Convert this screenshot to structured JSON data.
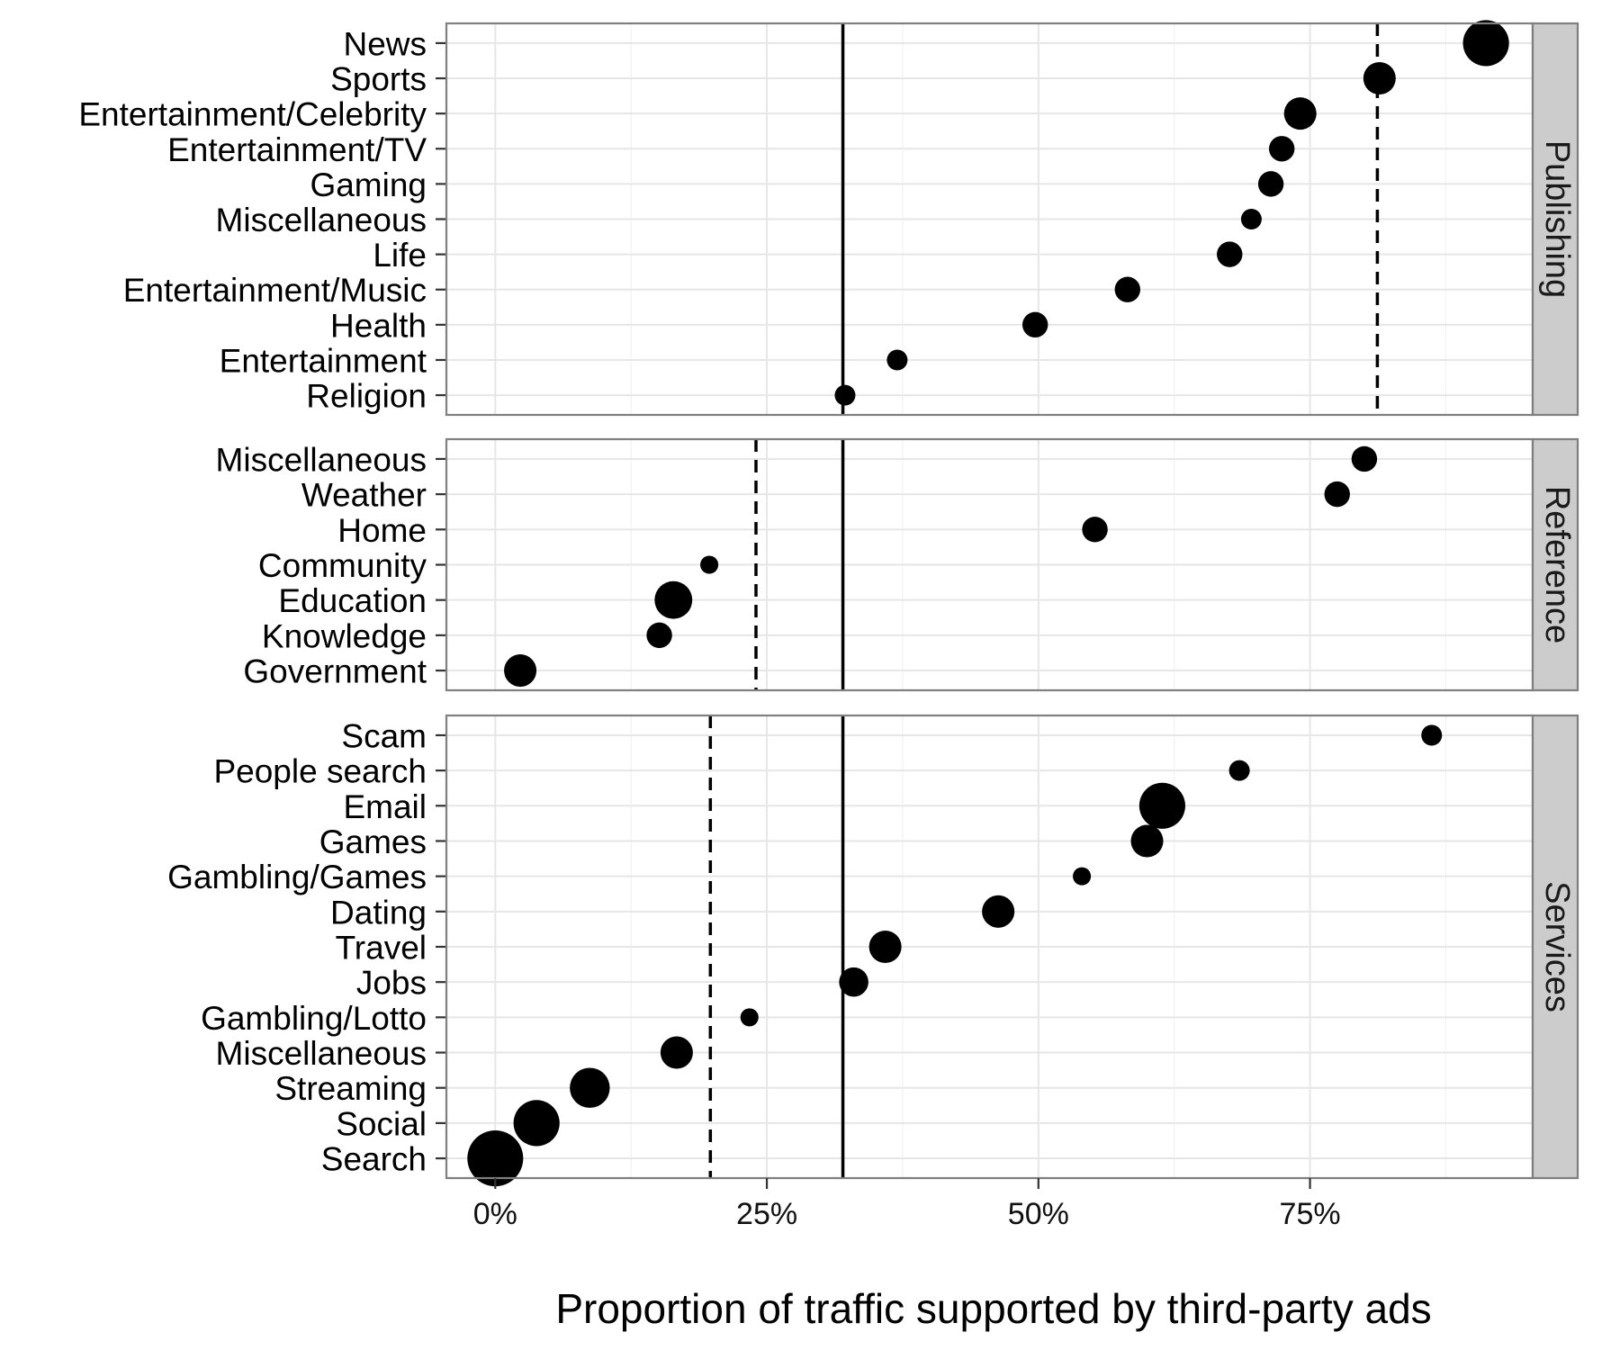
{
  "chart_data": {
    "type": "scatter",
    "xlabel": "Proportion of traffic supported by third-party ads",
    "ylabel": "",
    "xlim": [
      -0.045,
      0.955
    ],
    "x_ticks": [
      {
        "value": 0.0,
        "label": "0%"
      },
      {
        "value": 0.25,
        "label": "25%"
      },
      {
        "value": 0.5,
        "label": "50%"
      },
      {
        "value": 0.75,
        "label": "75%"
      }
    ],
    "overall_reference_line": 0.32,
    "grid": true,
    "legend": "none",
    "panels": [
      {
        "name": "Publishing",
        "panel_reference_line": 0.812,
        "points": [
          {
            "category": "News",
            "x": 0.912,
            "size": 5
          },
          {
            "category": "Sports",
            "x": 0.814,
            "size": 2
          },
          {
            "category": "Entertainment/Celebrity",
            "x": 0.741,
            "size": 2
          },
          {
            "category": "Entertainment/TV",
            "x": 0.724,
            "size": 1
          },
          {
            "category": "Gaming",
            "x": 0.714,
            "size": 1
          },
          {
            "category": "Miscellaneous",
            "x": 0.696,
            "size": 0.5
          },
          {
            "category": "Life",
            "x": 0.676,
            "size": 1
          },
          {
            "category": "Entertainment/Music",
            "x": 0.582,
            "size": 1
          },
          {
            "category": "Health",
            "x": 0.497,
            "size": 1
          },
          {
            "category": "Entertainment",
            "x": 0.37,
            "size": 0.5
          },
          {
            "category": "Religion",
            "x": 0.322,
            "size": 0.5
          }
        ]
      },
      {
        "name": "Reference",
        "panel_reference_line": 0.24,
        "points": [
          {
            "category": "Miscellaneous",
            "x": 0.8,
            "size": 1
          },
          {
            "category": "Weather",
            "x": 0.775,
            "size": 1
          },
          {
            "category": "Home",
            "x": 0.552,
            "size": 1
          },
          {
            "category": "Community",
            "x": 0.197,
            "size": 0.3
          },
          {
            "category": "Education",
            "x": 0.164,
            "size": 3
          },
          {
            "category": "Knowledge",
            "x": 0.151,
            "size": 1
          },
          {
            "category": "Government",
            "x": 0.023,
            "size": 2
          }
        ]
      },
      {
        "name": "Services",
        "panel_reference_line": 0.198,
        "points": [
          {
            "category": "Scam",
            "x": 0.862,
            "size": 0.5
          },
          {
            "category": "People search",
            "x": 0.685,
            "size": 0.5
          },
          {
            "category": "Email",
            "x": 0.614,
            "size": 5
          },
          {
            "category": "Games",
            "x": 0.6,
            "size": 2
          },
          {
            "category": "Gambling/Games",
            "x": 0.54,
            "size": 0.3
          },
          {
            "category": "Dating",
            "x": 0.463,
            "size": 2
          },
          {
            "category": "Travel",
            "x": 0.359,
            "size": 2
          },
          {
            "category": "Jobs",
            "x": 0.33,
            "size": 1.5
          },
          {
            "category": "Gambling/Lotto",
            "x": 0.234,
            "size": 0.3
          },
          {
            "category": "Miscellaneous",
            "x": 0.167,
            "size": 2
          },
          {
            "category": "Streaming",
            "x": 0.087,
            "size": 3.5
          },
          {
            "category": "Social",
            "x": 0.038,
            "size": 5
          },
          {
            "category": "Search",
            "x": 0.0,
            "size": 8
          }
        ]
      }
    ]
  }
}
